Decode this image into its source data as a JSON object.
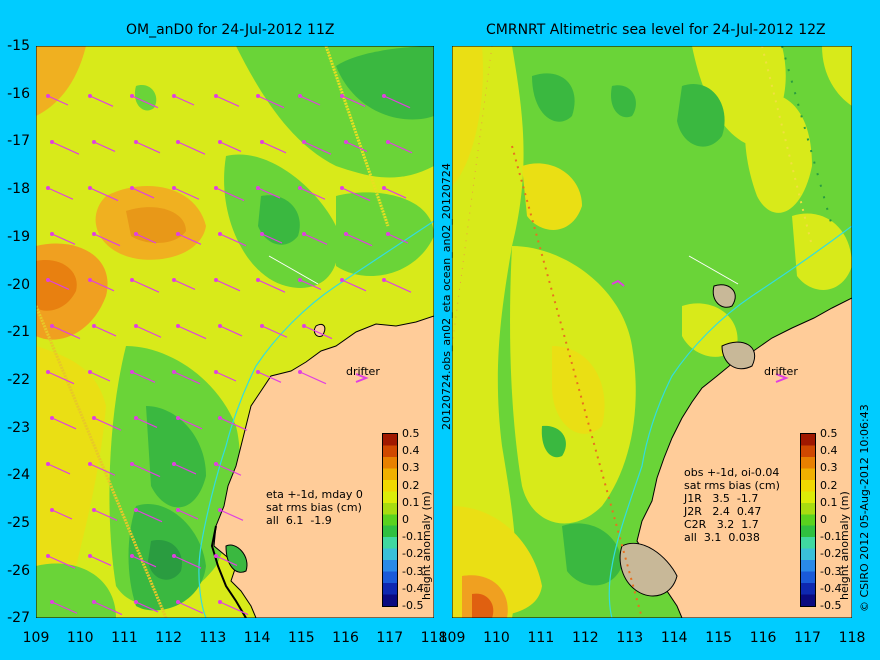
{
  "left_panel": {
    "title": "OM_anD0 for 24-Jul-2012 11Z",
    "drifter_label": "drifter",
    "stats_lines": [
      "eta +-1d, mday 0",
      "sat rms bias (cm)",
      "all  6.1  -1.9"
    ],
    "colorbar_label": "height anomaly (m)"
  },
  "right_panel": {
    "title": "CMRNRT Altimetric sea level  for 24-Jul-2012 12Z",
    "drifter_label": "drifter",
    "stats_lines": [
      "obs +-1d, oi-0.04",
      "sat rms bias (cm)",
      "J1R   3.5  -1.7",
      "J2R   2.4  0.47",
      "C2R   3.2  1.7",
      "all  3.1  0.038"
    ],
    "colorbar_label": "height anomaly (m)"
  },
  "center_label": "20120724.obs_an02_eta        ocean_an02_20120724",
  "credit": "© CSIRO 2012   05-Aug-2012 10:06:43",
  "axes": {
    "lat_ticks": [
      "-15",
      "-16",
      "-17",
      "-18",
      "-19",
      "-20",
      "-21",
      "-22",
      "-23",
      "-24",
      "-25",
      "-26",
      "-27"
    ],
    "lon_ticks": [
      "109",
      "110",
      "111",
      "112",
      "113",
      "114",
      "115",
      "116",
      "117",
      "118"
    ],
    "lon_range": [
      109,
      118
    ],
    "lat_range": [
      -27,
      -15
    ]
  },
  "colorbar": {
    "ticks": [
      "0.5",
      "0.4",
      "0.3",
      "0.2",
      "0.1",
      "0",
      "-0.1",
      "-0.2",
      "-0.3",
      "-0.4",
      "-0.5"
    ],
    "range": [
      -0.5,
      0.5
    ],
    "colors": [
      "#0a0a80",
      "#0e28b0",
      "#1a5ad8",
      "#2a8ae8",
      "#3ac0d8",
      "#40d8a0",
      "#30c040",
      "#5ad21e",
      "#a8dc10",
      "#dcec08",
      "#f0d800",
      "#f0b000",
      "#e88000",
      "#d04800",
      "#a01800"
    ]
  },
  "colors": {
    "background": "#00ccff",
    "land": "#ffcc99",
    "anomaly_high": "#f09820",
    "anomaly_mid": "#d8ea1a",
    "anomaly_zero": "#6ad438",
    "anomaly_low": "#2ca844",
    "vector": "#e040e0",
    "coastline": "#000000",
    "isobath": "#33dddd"
  }
}
